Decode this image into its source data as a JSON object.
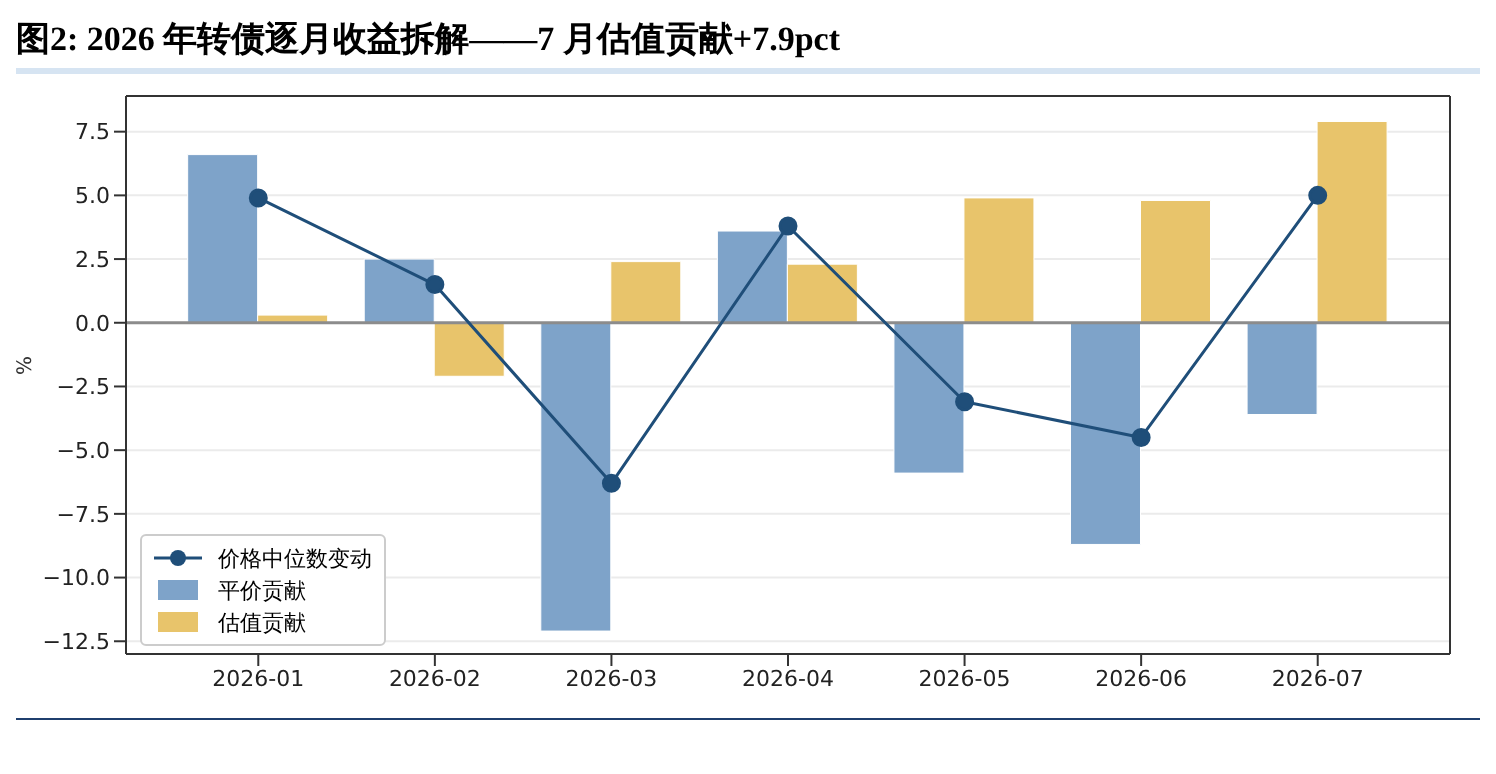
{
  "chart_data": {
    "type": "bar",
    "title": "图2: 2026 年转债逐月收益拆解——7 月估值贡献+7.9pct",
    "ylabel": "%",
    "categories": [
      "2026-01",
      "2026-02",
      "2026-03",
      "2026-04",
      "2026-05",
      "2026-06",
      "2026-07"
    ],
    "series": [
      {
        "name": "价格中位数变动",
        "type": "line",
        "color": "#1f4e79",
        "marker": "circle",
        "values": [
          4.9,
          1.5,
          -6.3,
          3.8,
          -3.1,
          -4.5,
          5.0
        ]
      },
      {
        "name": "平价贡献",
        "type": "bar",
        "color": "#7ea3c9",
        "values": [
          6.6,
          2.5,
          -12.1,
          3.6,
          -5.9,
          -8.7,
          -3.6
        ]
      },
      {
        "name": "估值贡献",
        "type": "bar",
        "color": "#e8c46b",
        "values": [
          0.3,
          -2.1,
          2.4,
          2.3,
          4.9,
          4.8,
          7.9
        ]
      }
    ],
    "ylim": [
      -13.0,
      8.9
    ],
    "yticks": [
      {
        "value": -12.5,
        "label": "−12.5"
      },
      {
        "value": -10,
        "label": "−10.0"
      },
      {
        "value": -7.5,
        "label": "−7.5"
      },
      {
        "value": -5,
        "label": "−5.0"
      },
      {
        "value": -2.5,
        "label": "−2.5"
      },
      {
        "value": 0,
        "label": "0.0"
      },
      {
        "value": 2.5,
        "label": "2.5"
      },
      {
        "value": 5,
        "label": "5.0"
      },
      {
        "value": 7.5,
        "label": "7.5"
      }
    ],
    "grid": "y",
    "legend": "bottom left",
    "ref_lines": [
      {
        "axis": "y",
        "value": 0,
        "color": "#8c8c8c"
      }
    ]
  }
}
